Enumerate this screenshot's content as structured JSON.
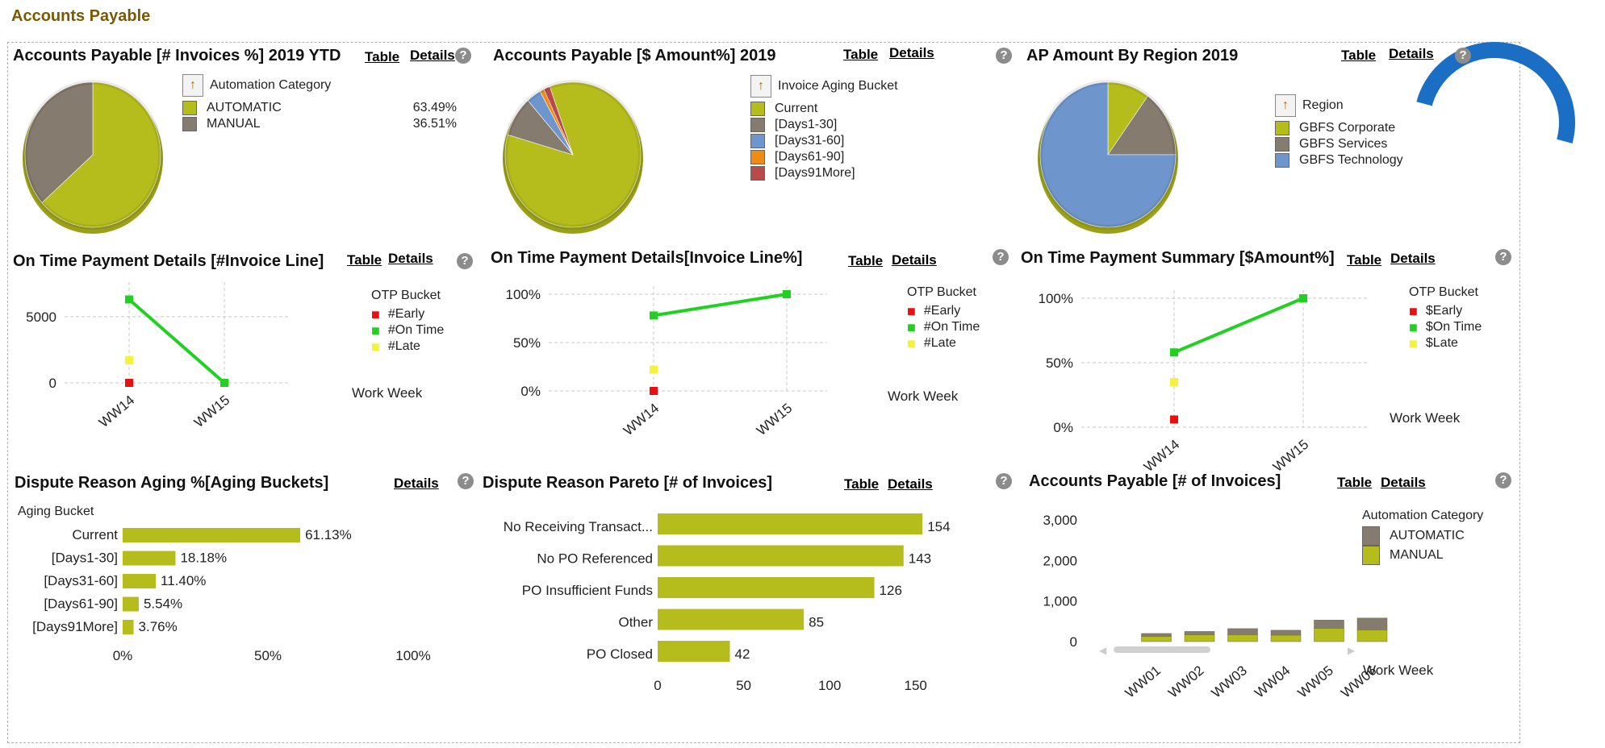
{
  "page_title": "Accounts Payable",
  "panels": {
    "p1": {
      "title": "Accounts Payable [# Invoices %] 2019 YTD",
      "table": "Table",
      "details": "Details",
      "help": "?",
      "legend_title": "Automation Category",
      "legend": [
        {
          "label": "AUTOMATIC",
          "pct": "63.49%",
          "color": "#b5bd1c"
        },
        {
          "label": "MANUAL",
          "pct": "36.51%",
          "color": "#857b6e"
        }
      ]
    },
    "p2": {
      "title": "Accounts Payable [$ Amount%] 2019",
      "table": "Table",
      "details": "Details",
      "help": "?",
      "legend_title": "Invoice Aging Bucket",
      "legend": [
        {
          "label": "Current",
          "color": "#b5bd1c"
        },
        {
          "label": "[Days1-30]",
          "color": "#857b6e"
        },
        {
          "label": "[Days31-60]",
          "color": "#6f96cc"
        },
        {
          "label": "[Days61-90]",
          "color": "#ef8a14"
        },
        {
          "label": "[Days91More]",
          "color": "#b84a4a"
        }
      ]
    },
    "p3": {
      "title": "AP Amount By Region 2019",
      "table": "Table",
      "details": "Details",
      "help": "?",
      "legend_title": "Region",
      "legend": [
        {
          "label": "GBFS Corporate",
          "color": "#b5bd1c"
        },
        {
          "label": "GBFS Services",
          "color": "#857b6e"
        },
        {
          "label": "GBFS Technology",
          "color": "#6f96cc"
        }
      ]
    },
    "p4": {
      "title": "On Time Payment Details [#Invoice Line]",
      "table": "Table",
      "details": "Details",
      "help": "?",
      "legend_title": "OTP Bucket",
      "legend": [
        {
          "label": "#Early",
          "color": "#e81010"
        },
        {
          "label": "#On Time",
          "color": "#22d022"
        },
        {
          "label": "#Late",
          "color": "#f4f23a"
        }
      ],
      "xlabel": "Work Week"
    },
    "p5": {
      "title": "On Time Payment Details[Invoice Line%]",
      "table": "Table",
      "details": "Details",
      "help": "?",
      "legend_title": "OTP Bucket",
      "legend": [
        {
          "label": "#Early",
          "color": "#e81010"
        },
        {
          "label": "#On Time",
          "color": "#22d022"
        },
        {
          "label": "#Late",
          "color": "#f4f23a"
        }
      ],
      "xlabel": "Work Week"
    },
    "p6": {
      "title": "On Time Payment Summary [$Amount%]",
      "table": "Table",
      "details": "Details",
      "help": "?",
      "legend_title": "OTP Bucket",
      "legend": [
        {
          "label": "$Early",
          "color": "#e81010"
        },
        {
          "label": "$On Time",
          "color": "#22d022"
        },
        {
          "label": "$Late",
          "color": "#f4f23a"
        }
      ],
      "xlabel": "Work Week"
    },
    "p7": {
      "title": "Dispute Reason Aging %[Aging Buckets]",
      "details": "Details",
      "help": "?",
      "dim_label": "Aging Bucket"
    },
    "p8": {
      "title": "Dispute Reason Pareto [# of Invoices]",
      "table": "Table",
      "details": "Details",
      "help": "?"
    },
    "p9": {
      "title": "Accounts Payable [# of Invoices]",
      "table": "Table",
      "details": "Details",
      "help": "?",
      "legend_title": "Automation Category",
      "legend": [
        {
          "label": "AUTOMATIC",
          "color": "#857b6e"
        },
        {
          "label": "MANUAL",
          "color": "#b5bd1c"
        }
      ],
      "xlabel": "Work Week"
    }
  },
  "chart_data": [
    {
      "id": "p1",
      "type": "pie",
      "slices": [
        {
          "label": "AUTOMATIC",
          "value": 63.49,
          "color": "#b5bd1c"
        },
        {
          "label": "MANUAL",
          "value": 36.51,
          "color": "#857b6e"
        }
      ]
    },
    {
      "id": "p2",
      "type": "pie",
      "slices": [
        {
          "label": "Current",
          "value": 85.0,
          "color": "#b5bd1c"
        },
        {
          "label": "[Days1-30]",
          "value": 9.0,
          "color": "#857b6e"
        },
        {
          "label": "[Days31-60]",
          "value": 3.5,
          "color": "#6f96cc"
        },
        {
          "label": "[Days61-90]",
          "value": 1.0,
          "color": "#ef8a14"
        },
        {
          "label": "[Days91More]",
          "value": 1.5,
          "color": "#b84a4a"
        }
      ]
    },
    {
      "id": "p3",
      "type": "pie",
      "slices": [
        {
          "label": "GBFS Corporate",
          "value": 10,
          "color": "#b5bd1c"
        },
        {
          "label": "GBFS Services",
          "value": 15,
          "color": "#857b6e"
        },
        {
          "label": "GBFS Technology",
          "value": 75,
          "color": "#6f96cc"
        }
      ]
    },
    {
      "id": "p4",
      "type": "line",
      "x": [
        "WW14",
        "WW15"
      ],
      "ylim": [
        0,
        7000
      ],
      "yticks": [
        "0",
        "5000"
      ],
      "ytick_values": [
        0,
        5000
      ],
      "series": [
        {
          "name": "#Early",
          "values": [
            0,
            null
          ]
        },
        {
          "name": "#On Time",
          "values": [
            6300,
            0
          ]
        },
        {
          "name": "#Late",
          "values": [
            1700,
            null
          ]
        }
      ]
    },
    {
      "id": "p5",
      "type": "line",
      "x": [
        "WW14",
        "WW15"
      ],
      "ylim": [
        0,
        1
      ],
      "yticks": [
        "0%",
        "50%",
        "100%"
      ],
      "ytick_values": [
        0,
        0.5,
        1.0
      ],
      "series": [
        {
          "name": "#Early",
          "values": [
            0.0,
            null
          ]
        },
        {
          "name": "#On Time",
          "values": [
            0.78,
            1.0
          ]
        },
        {
          "name": "#Late",
          "values": [
            0.22,
            null
          ]
        }
      ]
    },
    {
      "id": "p6",
      "type": "line",
      "x": [
        "WW14",
        "WW15"
      ],
      "ylim": [
        0,
        1
      ],
      "yticks": [
        "0%",
        "50%",
        "100%"
      ],
      "ytick_values": [
        0,
        0.5,
        1.0
      ],
      "series": [
        {
          "name": "$Early",
          "values": [
            0.06,
            null
          ]
        },
        {
          "name": "$On Time",
          "values": [
            0.58,
            1.0
          ]
        },
        {
          "name": "$Late",
          "values": [
            0.35,
            null
          ]
        }
      ]
    },
    {
      "id": "p7",
      "type": "bar",
      "orientation": "horizontal",
      "categories": [
        "Current",
        "[Days1-30]",
        "[Days31-60]",
        "[Days61-90]",
        "[Days91More]"
      ],
      "values": [
        61.13,
        18.18,
        11.4,
        5.54,
        3.76
      ],
      "labels": [
        "61.13%",
        "18.18%",
        "11.40%",
        "5.54%",
        "3.76%"
      ],
      "xlim": [
        0,
        100
      ],
      "xticks": [
        "0%",
        "50%",
        "100%"
      ],
      "xtick_values": [
        0,
        50,
        100
      ]
    },
    {
      "id": "p8",
      "type": "bar",
      "orientation": "horizontal",
      "categories": [
        "No Receiving Transact...",
        "No PO Referenced",
        "PO Insufficient Funds",
        "Other",
        "PO Closed"
      ],
      "values": [
        154,
        143,
        126,
        85,
        42
      ],
      "labels": [
        "154",
        "143",
        "126",
        "85",
        "42"
      ],
      "xlim": [
        0,
        160
      ],
      "xticks": [
        "0",
        "50",
        "100",
        "150"
      ],
      "xtick_values": [
        0,
        50,
        100,
        150
      ]
    },
    {
      "id": "p9",
      "type": "bar",
      "stacked": true,
      "categories": [
        "WW01",
        "WW02",
        "WW03",
        "WW04",
        "WW05",
        "WW06"
      ],
      "ylim": [
        0,
        3000
      ],
      "yticks": [
        "0",
        "1,000",
        "2,000",
        "3,000"
      ],
      "ytick_values": [
        0,
        1000,
        2000,
        3000
      ],
      "series": [
        {
          "name": "MANUAL",
          "values": [
            130,
            170,
            170,
            160,
            330,
            290
          ]
        },
        {
          "name": "AUTOMATIC",
          "values": [
            70,
            80,
            150,
            120,
            200,
            290
          ]
        }
      ]
    }
  ]
}
